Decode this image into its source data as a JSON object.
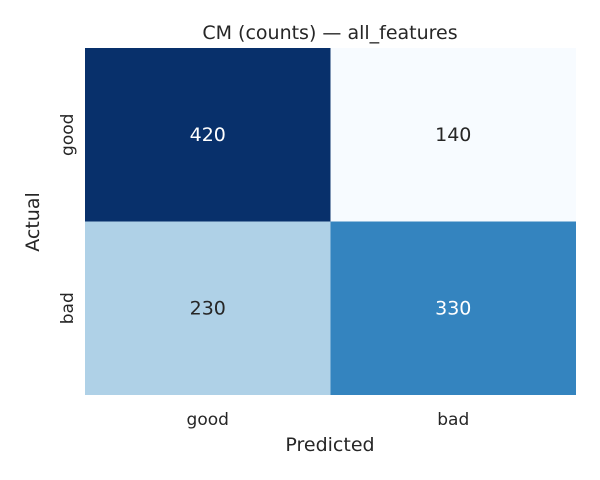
{
  "chart_data": {
    "type": "heatmap",
    "title": "CM (counts) — all_features",
    "xlabel": "Predicted",
    "ylabel": "Actual",
    "x_categories": [
      "good",
      "bad"
    ],
    "y_categories": [
      "good",
      "bad"
    ],
    "values": [
      [
        420,
        140
      ],
      [
        230,
        330
      ]
    ],
    "colormap": "Blues",
    "vmin": 140,
    "vmax": 420,
    "annotate": true,
    "colorbar": false,
    "grid": false
  }
}
